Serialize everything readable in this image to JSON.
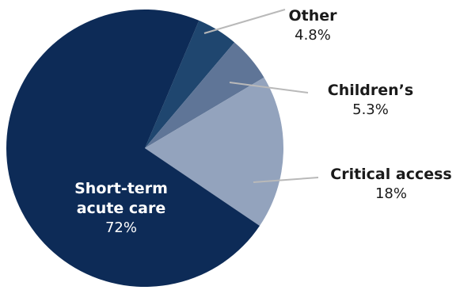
{
  "chart_data": {
    "type": "pie",
    "title": "",
    "slices": [
      {
        "label": "Short-term acute care",
        "label_lines": [
          "Short-term",
          "acute care"
        ],
        "value": 72,
        "value_text": "72%",
        "color": "#0d2b57",
        "text_color": "#ffffff"
      },
      {
        "label": "Critical access",
        "label_lines": [
          "Critical access"
        ],
        "value": 18,
        "value_text": "18%",
        "color": "#93a3bd",
        "text_color": "#1a1a1a"
      },
      {
        "label": "Children’s",
        "label_lines": [
          "Children’s"
        ],
        "value": 5.3,
        "value_text": "5.3%",
        "color": "#5f7597",
        "text_color": "#1a1a1a"
      },
      {
        "label": "Other",
        "label_lines": [
          "Other"
        ],
        "value": 4.8,
        "value_text": "4.8%",
        "color": "#1f466f",
        "text_color": "#1a1a1a"
      }
    ],
    "leader_line_color": "#b9b9b9",
    "legend": "none"
  }
}
